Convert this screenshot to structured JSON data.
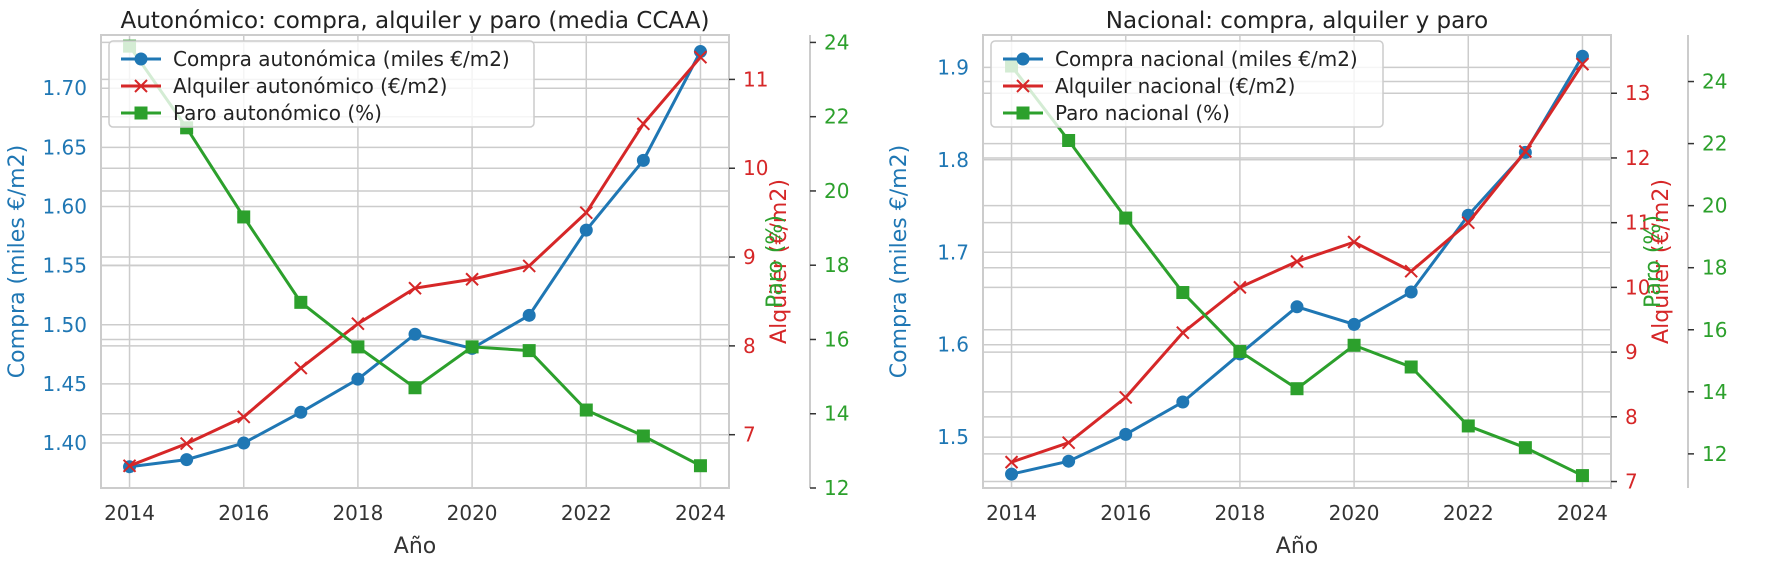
{
  "colors": {
    "compra": "#1f77b4",
    "alquiler": "#d62728",
    "paro": "#2ca02c",
    "grid": "#cccccc",
    "axis_text": "#333333",
    "spine": "#cccccc"
  },
  "chart_data": [
    {
      "type": "line",
      "title": "Autonómico: compra, alquiler y paro (media CCAA)",
      "xlabel": "Año",
      "x": [
        2014,
        2015,
        2016,
        2017,
        2018,
        2019,
        2020,
        2021,
        2022,
        2023,
        2024
      ],
      "xticks": [
        "2014",
        "2016",
        "2018",
        "2020",
        "2022",
        "2024"
      ],
      "xlim": [
        2013.5,
        2024.5
      ],
      "axes": {
        "left": {
          "label": "Compra (miles €/m2)",
          "lim": [
            1.362,
            1.745
          ],
          "ticks": [
            "1.40",
            "1.45",
            "1.50",
            "1.55",
            "1.60",
            "1.65",
            "1.70"
          ]
        },
        "right": {
          "label": "Alquiler (€/m2)",
          "lim": [
            6.4,
            11.5
          ],
          "ticks": [
            "7",
            "8",
            "9",
            "10",
            "11"
          ]
        },
        "right2": {
          "label": "Paro (%)",
          "lim": [
            12.0,
            24.2
          ],
          "ticks": [
            "12",
            "14",
            "16",
            "18",
            "20",
            "22",
            "24"
          ]
        }
      },
      "series": [
        {
          "name": "Compra autonómica (miles €/m2)",
          "axis": "left",
          "marker": "circle",
          "values": [
            1.38,
            1.386,
            1.4,
            1.426,
            1.454,
            1.492,
            1.48,
            1.508,
            1.58,
            1.639,
            1.731
          ]
        },
        {
          "name": "Alquiler autonómico (€/m2)",
          "axis": "right",
          "marker": "x",
          "values": [
            6.65,
            6.9,
            7.2,
            7.75,
            8.25,
            8.65,
            8.75,
            8.9,
            9.5,
            10.5,
            11.25
          ]
        },
        {
          "name": "Paro autonómico (%)",
          "axis": "right2",
          "marker": "square",
          "values": [
            23.9,
            21.7,
            19.3,
            17.0,
            15.8,
            14.7,
            15.8,
            15.7,
            14.1,
            13.4,
            12.6
          ]
        }
      ],
      "legend": "upper-left"
    },
    {
      "type": "line",
      "title": "Nacional: compra, alquiler y paro",
      "xlabel": "Año",
      "x": [
        2014,
        2015,
        2016,
        2017,
        2018,
        2019,
        2020,
        2021,
        2022,
        2023,
        2024
      ],
      "xticks": [
        "2014",
        "2016",
        "2018",
        "2020",
        "2022",
        "2024"
      ],
      "xlim": [
        2013.5,
        2024.5
      ],
      "axes": {
        "left": {
          "label": "Compra (miles €/m2)",
          "lim": [
            1.445,
            1.935
          ],
          "ticks": [
            "1.5",
            "1.6",
            "1.7",
            "1.8",
            "1.9"
          ]
        },
        "right": {
          "label": "Alquiler (€/m2)",
          "lim": [
            6.9,
            13.9
          ],
          "ticks": [
            "7",
            "8",
            "9",
            "10",
            "11",
            "12",
            "13"
          ]
        },
        "right2": {
          "label": "Paro (%)",
          "lim": [
            10.9,
            25.5
          ],
          "ticks": [
            "12",
            "14",
            "16",
            "18",
            "20",
            "22",
            "24"
          ]
        }
      },
      "series": [
        {
          "name": "Compra nacional (miles €/m2)",
          "axis": "left",
          "marker": "circle",
          "values": [
            1.46,
            1.474,
            1.503,
            1.538,
            1.59,
            1.641,
            1.622,
            1.657,
            1.74,
            1.808,
            1.912
          ]
        },
        {
          "name": "Alquiler nacional (€/m2)",
          "axis": "right",
          "marker": "x",
          "values": [
            7.3,
            7.6,
            8.3,
            9.3,
            10.0,
            10.4,
            10.7,
            10.25,
            11.0,
            12.1,
            13.45
          ]
        },
        {
          "name": "Paro nacional (%)",
          "axis": "right2",
          "marker": "square",
          "values": [
            24.5,
            22.1,
            19.6,
            17.2,
            15.3,
            14.1,
            15.5,
            14.8,
            12.9,
            12.2,
            11.3
          ]
        }
      ],
      "legend": "upper-left"
    }
  ]
}
